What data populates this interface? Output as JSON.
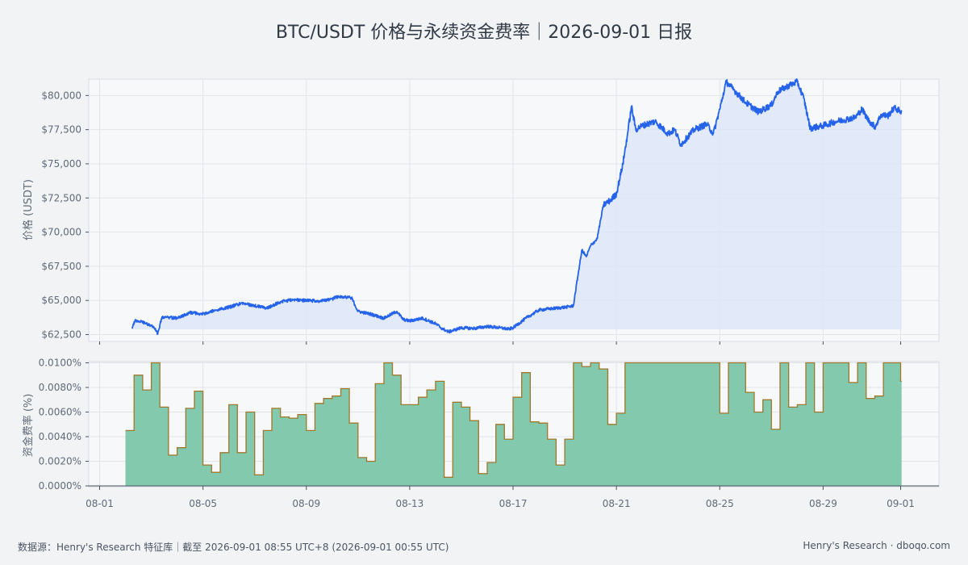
{
  "title": "BTC/USDT 价格与永续资金费率｜2026-09-01 日报",
  "footer": {
    "source": "数据源：Henry's Research 特征库｜截至 2026-09-01 08:55 UTC+8 (2026-09-01 00:55 UTC)",
    "brand": "Henry's Research · dboqo.com"
  },
  "colors": {
    "price_line": "#2563eb",
    "price_fill": "#dbe5f8",
    "funding_fill": "#82c9ad",
    "funding_line": "#a0782c",
    "background": "#f2f3f5"
  },
  "chart_data": [
    {
      "type": "line",
      "ylabel": "价格 (USDT)",
      "ylim": [
        62000,
        81200
      ],
      "yticks": [
        62500,
        65000,
        67500,
        70000,
        72500,
        75000,
        77500,
        80000
      ],
      "ytick_labels": [
        "$62,500",
        "$65,000",
        "$67,500",
        "$70,000",
        "$72,500",
        "$75,000",
        "$77,500",
        "$80,000"
      ],
      "grid": true,
      "fill_below": true,
      "series": [
        {
          "points": [
            [
              "08-02 06:00",
              62950
            ],
            [
              "08-02 09:00",
              63550
            ],
            [
              "08-02 18:00",
              63350
            ],
            [
              "08-03 02:00",
              63100
            ],
            [
              "08-03 06:00",
              62550
            ],
            [
              "08-03 10:00",
              63800
            ],
            [
              "08-04 00:00",
              63700
            ],
            [
              "08-04 12:00",
              64100
            ],
            [
              "08-05 00:00",
              64000
            ],
            [
              "08-05 12:00",
              64300
            ],
            [
              "08-06 00:00",
              64500
            ],
            [
              "08-06 12:00",
              64800
            ],
            [
              "08-07 00:00",
              64600
            ],
            [
              "08-07 12:00",
              64450
            ],
            [
              "08-08 00:00",
              64900
            ],
            [
              "08-08 12:00",
              65050
            ],
            [
              "08-09 00:00",
              65000
            ],
            [
              "08-09 12:00",
              64950
            ],
            [
              "08-10 00:00",
              65100
            ],
            [
              "08-10 06:00",
              65300
            ],
            [
              "08-10 18:00",
              65200
            ],
            [
              "08-11 00:00",
              64200
            ],
            [
              "08-11 12:00",
              64000
            ],
            [
              "08-12 00:00",
              63700
            ],
            [
              "08-12 12:00",
              64200
            ],
            [
              "08-12 18:00",
              63600
            ],
            [
              "08-13 00:00",
              63500
            ],
            [
              "08-13 12:00",
              63700
            ],
            [
              "08-14 00:00",
              63300
            ],
            [
              "08-14 06:00",
              62950
            ],
            [
              "08-14 12:00",
              62700
            ],
            [
              "08-15 00:00",
              63000
            ],
            [
              "08-15 12:00",
              62950
            ],
            [
              "08-16 00:00",
              63100
            ],
            [
              "08-16 12:00",
              63000
            ],
            [
              "08-16 20:00",
              62900
            ],
            [
              "08-17 00:00",
              63000
            ],
            [
              "08-17 12:00",
              63700
            ],
            [
              "08-18 00:00",
              64300
            ],
            [
              "08-18 12:00",
              64400
            ],
            [
              "08-19 00:00",
              64500
            ],
            [
              "08-19 08:00",
              64600
            ],
            [
              "08-19 12:00",
              66700
            ],
            [
              "08-19 16:00",
              68700
            ],
            [
              "08-19 20:00",
              68200
            ],
            [
              "08-20 00:00",
              69000
            ],
            [
              "08-20 06:00",
              69500
            ],
            [
              "08-20 12:00",
              72000
            ],
            [
              "08-20 18:00",
              72300
            ],
            [
              "08-21 00:00",
              72800
            ],
            [
              "08-21 06:00",
              75000
            ],
            [
              "08-21 10:00",
              77000
            ],
            [
              "08-21 14:00",
              79200
            ],
            [
              "08-21 18:00",
              77500
            ],
            [
              "08-22 00:00",
              77800
            ],
            [
              "08-22 12:00",
              78100
            ],
            [
              "08-23 00:00",
              77200
            ],
            [
              "08-23 06:00",
              77500
            ],
            [
              "08-23 12:00",
              76400
            ],
            [
              "08-24 00:00",
              77500
            ],
            [
              "08-24 12:00",
              77900
            ],
            [
              "08-24 18:00",
              77200
            ],
            [
              "08-25 00:00",
              79000
            ],
            [
              "08-25 06:00",
              81000
            ],
            [
              "08-25 12:00",
              80500
            ],
            [
              "08-26 00:00",
              79500
            ],
            [
              "08-26 12:00",
              78800
            ],
            [
              "08-27 00:00",
              79300
            ],
            [
              "08-27 06:00",
              80300
            ],
            [
              "08-27 18:00",
              80800
            ],
            [
              "08-28 00:00",
              81000
            ],
            [
              "08-28 06:00",
              79800
            ],
            [
              "08-28 12:00",
              77600
            ],
            [
              "08-28 18:00",
              77700
            ],
            [
              "08-29 00:00",
              77800
            ],
            [
              "08-29 12:00",
              78100
            ],
            [
              "08-30 00:00",
              78300
            ],
            [
              "08-30 06:00",
              78400
            ],
            [
              "08-30 12:00",
              79000
            ],
            [
              "08-30 18:00",
              78200
            ],
            [
              "08-31 00:00",
              77700
            ],
            [
              "08-31 06:00",
              78600
            ],
            [
              "08-31 12:00",
              78500
            ],
            [
              "08-31 18:00",
              79100
            ],
            [
              "09-01 00:55",
              78800
            ]
          ]
        }
      ]
    },
    {
      "type": "area",
      "step": true,
      "ylabel": "资金费率 (%)",
      "ylim": [
        0,
        0.0101
      ],
      "yticks": [
        0,
        0.002,
        0.004,
        0.006,
        0.008,
        0.01
      ],
      "ytick_labels": [
        "0.0000%",
        "0.0020%",
        "0.0040%",
        "0.0060%",
        "0.0080%",
        "0.0100%"
      ],
      "x_ticks": [
        "08-01",
        "08-05",
        "08-09",
        "08-13",
        "08-17",
        "08-21",
        "08-25",
        "08-29",
        "09-01"
      ],
      "grid": true,
      "series": [
        {
          "start": "08-02 00:00",
          "interval_hours": 8,
          "end": "09-01 00:55",
          "values": [
            0.0045,
            0.009,
            0.0078,
            0.01,
            0.0064,
            0.0025,
            0.0031,
            0.0063,
            0.0077,
            0.0017,
            0.0011,
            0.0027,
            0.0066,
            0.0027,
            0.006,
            0.0009,
            0.0045,
            0.0063,
            0.0056,
            0.0055,
            0.0058,
            0.0045,
            0.0067,
            0.0071,
            0.0073,
            0.0079,
            0.0051,
            0.0023,
            0.002,
            0.0083,
            0.01,
            0.009,
            0.0066,
            0.0066,
            0.0072,
            0.0078,
            0.0085,
            0.0007,
            0.0068,
            0.0064,
            0.0053,
            0.001,
            0.0019,
            0.005,
            0.0038,
            0.0072,
            0.0092,
            0.0052,
            0.0051,
            0.0038,
            0.0017,
            0.0038,
            0.01,
            0.0097,
            0.01,
            0.0095,
            0.005,
            0.0059,
            0.01,
            0.01,
            0.01,
            0.01,
            0.01,
            0.01,
            0.01,
            0.01,
            0.01,
            0.01,
            0.01,
            0.0059,
            0.01,
            0.01,
            0.0076,
            0.006,
            0.007,
            0.0046,
            0.01,
            0.0064,
            0.0066,
            0.01,
            0.006,
            0.01,
            0.01,
            0.01,
            0.0084,
            0.01,
            0.0071,
            0.0073,
            0.01,
            0.01,
            0.0085
          ]
        }
      ]
    }
  ]
}
